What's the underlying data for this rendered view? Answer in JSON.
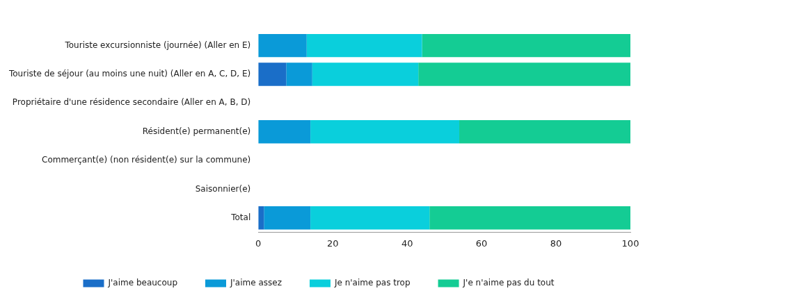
{
  "chart_data": {
    "type": "bar",
    "orientation": "horizontal",
    "stacked": true,
    "categories": [
      "Touriste excursionniste (journée) (Aller en E)",
      "Touriste de séjour (au moins une nuit) (Aller en A, C, D, E)",
      "Propriétaire d'une résidence secondaire (Aller en A, B, D)",
      "Résident(e) permanent(e)",
      "Commerçant(e) (non résident(e) sur la commune)",
      "Saisonnier(e)",
      "Total"
    ],
    "series": [
      {
        "name": "J'aime beaucoup",
        "color": "#1a6ec8",
        "values": [
          0,
          7.5,
          null,
          0,
          null,
          null,
          1.5
        ]
      },
      {
        "name": "J'aime assez",
        "color": "#0a9ad8",
        "values": [
          13,
          7,
          null,
          14,
          null,
          null,
          12.5
        ]
      },
      {
        "name": "Je n'aime pas trop",
        "color": "#0acfdc",
        "values": [
          31,
          28.5,
          null,
          40,
          null,
          null,
          32
        ]
      },
      {
        "name": "J'e n'aime pas du tout",
        "color": "#14cc94",
        "values": [
          56,
          57,
          null,
          46,
          null,
          null,
          54
        ]
      }
    ],
    "xlim": [
      0,
      100
    ],
    "xticks": [
      0,
      20,
      40,
      60,
      80,
      100
    ],
    "grid": false,
    "legend": "bottom"
  }
}
